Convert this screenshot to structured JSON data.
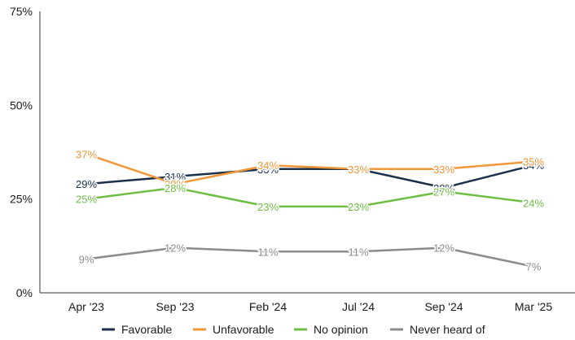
{
  "chart_data": {
    "type": "line",
    "categories": [
      "Apr '23",
      "Sep '23",
      "Feb '24",
      "Jul '24",
      "Sep '24",
      "Mar '25"
    ],
    "y_ticks": [
      "0%",
      "25%",
      "50%",
      "75%"
    ],
    "ylim": [
      0,
      75
    ],
    "grid": false,
    "legend_position": "bottom",
    "series": [
      {
        "name": "Favorable",
        "color": "#1b2f4b",
        "values": [
          29,
          31,
          33,
          33,
          28,
          34
        ],
        "labels": [
          "29%",
          "31%",
          "33%",
          "33%",
          "28%",
          "34%"
        ]
      },
      {
        "name": "Unfavorable",
        "color": "#f0973a",
        "values": [
          37,
          29,
          34,
          33,
          33,
          35
        ],
        "labels": [
          "37%",
          "29%",
          "34%",
          "33%",
          "33%",
          "35%"
        ]
      },
      {
        "name": "No opinion",
        "color": "#6fbe44",
        "values": [
          25,
          28,
          23,
          23,
          27,
          24
        ],
        "labels": [
          "25%",
          "28%",
          "23%",
          "23%",
          "27%",
          "24%"
        ]
      },
      {
        "name": "Never heard of",
        "color": "#8c8c8c",
        "values": [
          9,
          12,
          11,
          11,
          12,
          7
        ],
        "labels": [
          "9%",
          "12%",
          "11%",
          "11%",
          "12%",
          "7%"
        ]
      }
    ]
  }
}
